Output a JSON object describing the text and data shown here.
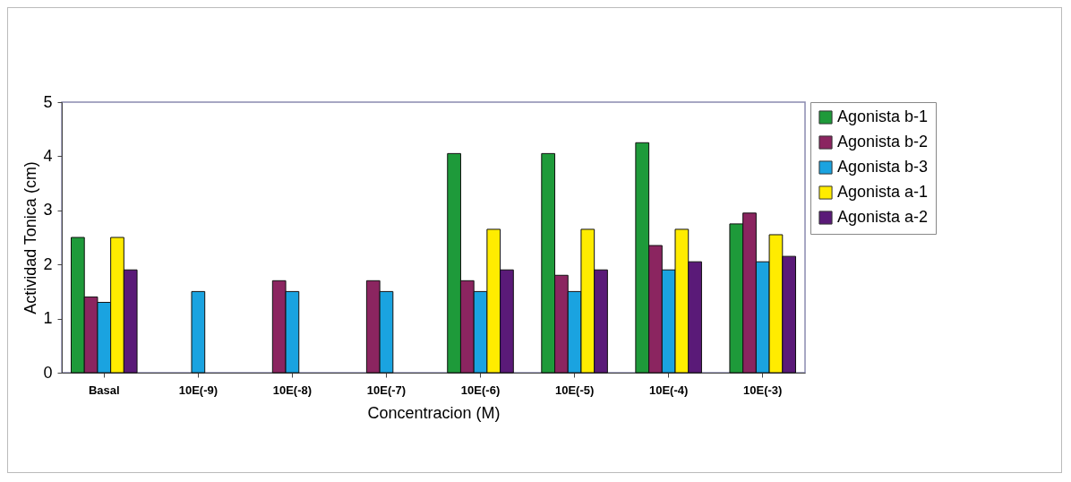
{
  "chart_data": {
    "type": "bar",
    "xlabel": "Concentracion (M)",
    "ylabel": "Actividad Tonica (cm)",
    "categories": [
      "Basal",
      "10E(-9)",
      "10E(-8)",
      "10E(-7)",
      "10E(-6)",
      "10E(-5)",
      "10E(-4)",
      "10E(-3)"
    ],
    "series": [
      {
        "name": "Agonista b-1",
        "color": "#1e9a3a",
        "values": [
          2.5,
          null,
          null,
          null,
          4.05,
          4.05,
          4.25,
          2.75
        ]
      },
      {
        "name": "Agonista b-2",
        "color": "#8b2560",
        "values": [
          1.4,
          null,
          1.7,
          1.7,
          1.7,
          1.8,
          2.35,
          2.95
        ]
      },
      {
        "name": "Agonista b-3",
        "color": "#1aa3e0",
        "values": [
          1.3,
          1.5,
          1.5,
          1.5,
          1.5,
          1.5,
          1.9,
          2.05
        ]
      },
      {
        "name": "Agonista a-1",
        "color": "#ffec00",
        "values": [
          2.5,
          null,
          null,
          null,
          2.65,
          2.65,
          2.65,
          2.55
        ]
      },
      {
        "name": "Agonista a-2",
        "color": "#5a1a78",
        "values": [
          1.9,
          null,
          null,
          null,
          1.9,
          1.9,
          2.05,
          2.15
        ]
      }
    ],
    "ylim": [
      0,
      5
    ],
    "yticks": [
      0,
      1,
      2,
      3,
      4,
      5
    ],
    "grid": false,
    "legend": "right"
  }
}
